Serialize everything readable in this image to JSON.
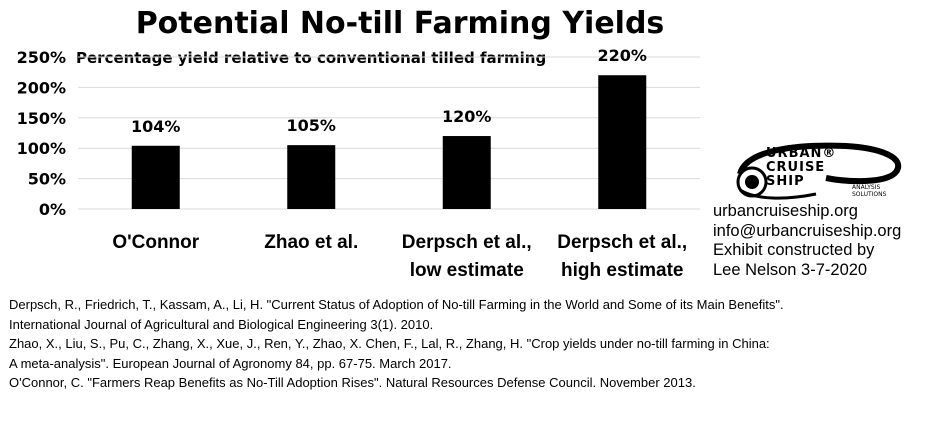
{
  "chart_data": {
    "type": "bar",
    "title": "Potential No-till Farming Yields",
    "subtitle": "Percentage yield relative to conventional tilled farming",
    "categories": [
      [
        "O'Connor"
      ],
      [
        "Zhao et al."
      ],
      [
        "Derpsch et al.,",
        "low estimate"
      ],
      [
        "Derpsch et al.,",
        "high estimate"
      ]
    ],
    "values": [
      104,
      105,
      120,
      220
    ],
    "data_labels": [
      "104%",
      "105%",
      "120%",
      "220%"
    ],
    "ylim": [
      0,
      250
    ],
    "yticks": [
      0,
      50,
      100,
      150,
      200,
      250
    ],
    "ytick_labels": [
      "0%",
      "50%",
      "100%",
      "150%",
      "200%",
      "250%"
    ],
    "grid": true,
    "bar_color": "#000000",
    "grid_color": "#d9d9d9"
  },
  "logo": {
    "lines": [
      "URBAN®",
      "CRUISE",
      "SHIP"
    ],
    "sub": [
      "ANALYSIS",
      "SOLUTIONS"
    ]
  },
  "contact": [
    "urbancruiseship.org",
    "info@urbancruiseship.org",
    "Exhibit constructed by",
    "Lee Nelson 3-7-2020"
  ],
  "references": [
    "Derpsch, R., Friedrich, T., Kassam, A., Li, H. \"Current Status of Adoption of No-till Farming in the World and Some of its Main Benefits\".",
    "International Journal of Agricultural and Biological Engineering 3(1). 2010.",
    "Zhao, X., Liu, S., Pu, C., Zhang, X., Xue, J., Ren, Y., Zhao, X. Chen, F., Lal, R., Zhang, H. \"Crop yields under no-till farming in China:",
    "A meta-analysis\". European Journal of Agronomy 84, pp. 67-75. March 2017.",
    "O'Connor, C. \"Farmers Reap Benefits as No-Till Adoption Rises\". Natural Resources Defense Council. November 2013."
  ]
}
